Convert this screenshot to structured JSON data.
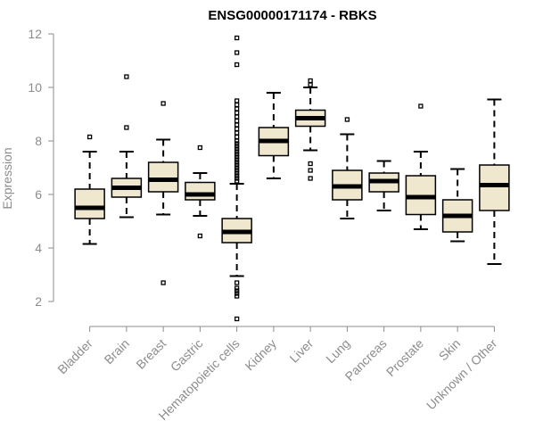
{
  "chart_data": {
    "type": "boxplot",
    "title": "ENSG00000171174 - RBKS",
    "ylabel": "Expression",
    "xlabel": "",
    "ylim": [
      1.0,
      12.3
    ],
    "yticks": [
      2,
      4,
      6,
      8,
      10,
      12
    ],
    "box_color": "#efe8cf",
    "median_color": "#000000",
    "categories": [
      "Bladder",
      "Brain",
      "Breast",
      "Gastric",
      "Hematopoietic cells",
      "Kidney",
      "Liver",
      "Lung",
      "Pancreas",
      "Prostate",
      "Skin",
      "Unknown / Other"
    ],
    "boxes": [
      {
        "name": "Bladder",
        "whisker_low": 4.15,
        "q1": 5.1,
        "median": 5.5,
        "q3": 6.2,
        "whisker_high": 7.6,
        "outliers": [
          8.15
        ]
      },
      {
        "name": "Brain",
        "whisker_low": 5.15,
        "q1": 5.9,
        "median": 6.25,
        "q3": 6.6,
        "whisker_high": 7.6,
        "outliers": [
          8.5,
          10.4
        ]
      },
      {
        "name": "Breast",
        "whisker_low": 5.25,
        "q1": 6.1,
        "median": 6.55,
        "q3": 7.2,
        "whisker_high": 8.05,
        "outliers": [
          2.7,
          9.4
        ]
      },
      {
        "name": "Gastric",
        "whisker_low": 5.2,
        "q1": 5.8,
        "median": 6.0,
        "q3": 6.45,
        "whisker_high": 6.8,
        "outliers": [
          4.45,
          7.75
        ]
      },
      {
        "name": "Hematopoietic cells",
        "whisker_low": 2.95,
        "q1": 4.2,
        "median": 4.6,
        "q3": 5.1,
        "whisker_high": 6.4,
        "outliers": [
          1.35,
          2.2,
          2.3,
          2.4,
          2.5,
          2.7,
          6.5,
          6.6,
          6.7,
          6.8,
          6.9,
          7.0,
          7.1,
          7.2,
          7.3,
          7.4,
          7.5,
          7.6,
          7.7,
          7.8,
          7.9,
          8.0,
          8.15,
          8.3,
          8.45,
          8.6,
          8.75,
          8.9,
          9.05,
          9.2,
          9.35,
          9.5,
          10.85,
          11.3,
          11.85
        ]
      },
      {
        "name": "Kidney",
        "whisker_low": 6.6,
        "q1": 7.45,
        "median": 8.0,
        "q3": 8.5,
        "whisker_high": 9.8,
        "outliers": []
      },
      {
        "name": "Liver",
        "whisker_low": 7.65,
        "q1": 8.55,
        "median": 8.85,
        "q3": 9.15,
        "whisker_high": 10.0,
        "outliers": [
          6.6,
          6.9,
          7.15,
          10.1,
          10.25
        ]
      },
      {
        "name": "Lung",
        "whisker_low": 5.1,
        "q1": 5.8,
        "median": 6.3,
        "q3": 6.9,
        "whisker_high": 8.25,
        "outliers": [
          8.8
        ]
      },
      {
        "name": "Pancreas",
        "whisker_low": 5.4,
        "q1": 6.1,
        "median": 6.5,
        "q3": 6.8,
        "whisker_high": 7.25,
        "outliers": []
      },
      {
        "name": "Prostate",
        "whisker_low": 4.7,
        "q1": 5.25,
        "median": 5.9,
        "q3": 6.7,
        "whisker_high": 7.6,
        "outliers": [
          9.3
        ]
      },
      {
        "name": "Skin",
        "whisker_low": 4.25,
        "q1": 4.6,
        "median": 5.2,
        "q3": 5.8,
        "whisker_high": 6.95,
        "outliers": []
      },
      {
        "name": "Unknown / Other",
        "whisker_low": 3.4,
        "q1": 5.4,
        "median": 6.35,
        "q3": 7.1,
        "whisker_high": 9.55,
        "outliers": []
      }
    ]
  }
}
